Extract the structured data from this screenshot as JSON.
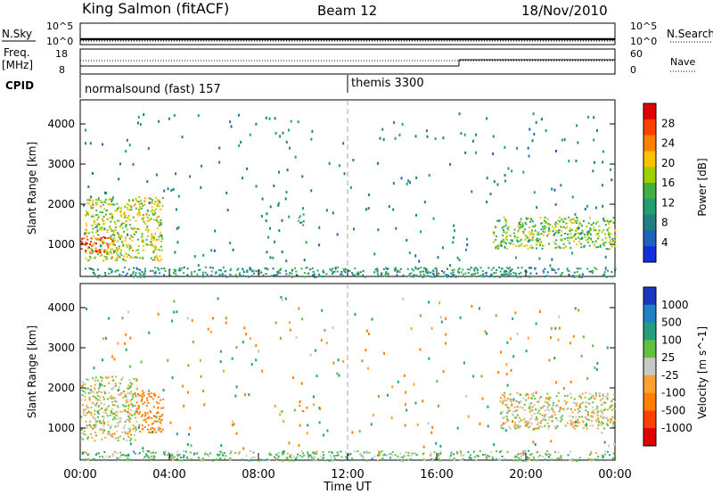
{
  "header": {
    "station": "King Salmon (fitACF)",
    "beam": "Beam 12",
    "date": "18/Nov/2010"
  },
  "top_panels": {
    "nsky_label": "N.Sky",
    "nsearch_label": "N.Search",
    "left_scale_top": "10^5",
    "left_scale_bottom": "10^0",
    "right_scale_top": "10^5",
    "right_scale_bottom": "10^0",
    "freq_label_1": "Freq.",
    "freq_label_2": "[MHz]",
    "freq_top": "18",
    "freq_bottom": "8",
    "nave_label": "Nave",
    "nave_top": "60",
    "nave_bottom": "0",
    "cpid_label": "CPID",
    "program_1": "normalsound (fast) 157",
    "program_2": "themis 3300"
  },
  "chart_data": [
    {
      "type": "heatmap",
      "title": "",
      "ylabel": "Slant Range [km]",
      "xlabel": "",
      "ylim": [
        200,
        4600
      ],
      "yticks": [
        "1000",
        "2000",
        "3000",
        "4000"
      ],
      "colorbar": {
        "label": "Power [dB]",
        "ticks": [
          "28",
          "24",
          "20",
          "16",
          "12",
          "8",
          "4"
        ],
        "colors": [
          "#e00000",
          "#ff4000",
          "#ff8000",
          "#ffc000",
          "#a0d000",
          "#40b040",
          "#20a070",
          "#208080",
          "#2060c0",
          "#1030e0"
        ]
      },
      "regions": [
        {
          "t_start": 0.2,
          "t_end": 3.7,
          "r_lo": 600,
          "r_hi": 2200,
          "level": 16
        },
        {
          "t_start": 0.0,
          "t_end": 1.5,
          "r_lo": 800,
          "r_hi": 1200,
          "level": 24
        },
        {
          "t_start": 9.7,
          "t_end": 10.0,
          "r_lo": 1500,
          "r_hi": 1800,
          "level": 10
        },
        {
          "t_start": 18.5,
          "t_end": 24.0,
          "r_lo": 900,
          "r_hi": 1700,
          "level": 14
        },
        {
          "t_start": 0.0,
          "t_end": 24.0,
          "r_lo": 200,
          "r_hi": 450,
          "level": 8
        }
      ]
    },
    {
      "type": "heatmap",
      "title": "",
      "ylabel": "Slant Range [km]",
      "xlabel": "Time UT",
      "ylim": [
        200,
        4600
      ],
      "yticks": [
        "1000",
        "2000",
        "3000",
        "4000"
      ],
      "xticks": [
        "00:00",
        "04:00",
        "08:00",
        "12:00",
        "16:00",
        "20:00",
        "00:00"
      ],
      "colorbar": {
        "label": "Velocity [m s^-1]",
        "ticks": [
          "1000",
          "500",
          "100",
          "25",
          "-25",
          "-100",
          "-500",
          "-1000"
        ],
        "colors": [
          "#1838c0",
          "#2080c8",
          "#20a080",
          "#60c040",
          "#c8c8c8",
          "#ffa030",
          "#ff8000",
          "#ff4000",
          "#e00000"
        ]
      },
      "regions": [
        {
          "t_start": 0.0,
          "t_end": 2.5,
          "r_lo": 700,
          "r_hi": 2300,
          "level": 0
        },
        {
          "t_start": 2.5,
          "t_end": 3.7,
          "r_lo": 900,
          "r_hi": 1900,
          "level": -200
        },
        {
          "t_start": 9.8,
          "t_end": 10.0,
          "r_lo": 1400,
          "r_hi": 1700,
          "level": -300
        },
        {
          "t_start": 18.8,
          "t_end": 24.0,
          "r_lo": 1000,
          "r_hi": 1900,
          "level": 0
        },
        {
          "t_start": 0.0,
          "t_end": 24.0,
          "r_lo": 200,
          "r_hi": 450,
          "level": 60
        }
      ]
    }
  ]
}
